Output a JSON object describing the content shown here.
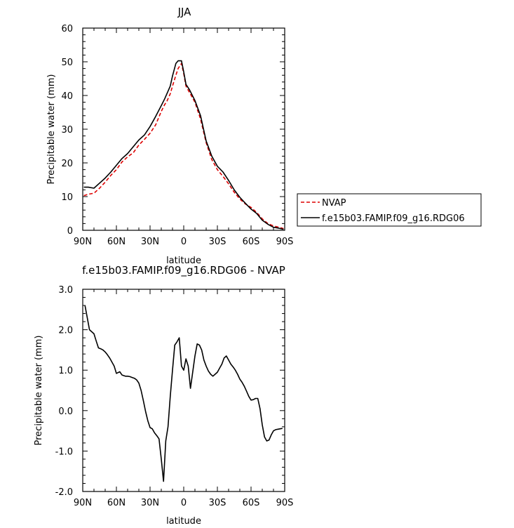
{
  "chart_data": [
    {
      "type": "line",
      "title": "JJA",
      "xlabel": "latitude",
      "ylabel": "Precipitable water (mm)",
      "xlim": [
        90,
        -90
      ],
      "ylim": [
        0,
        60
      ],
      "xticks": [
        90,
        60,
        30,
        0,
        -30,
        -60,
        -90
      ],
      "xtick_labels": [
        "90N",
        "60N",
        "30N",
        "0",
        "30S",
        "60S",
        "90S"
      ],
      "yticks": [
        0,
        10,
        20,
        30,
        40,
        50,
        60
      ],
      "ytick_labels": [
        "0",
        "10",
        "20",
        "30",
        "40",
        "50",
        "60"
      ],
      "legend_position": "right",
      "series": [
        {
          "name": "NVAP",
          "color": "#dd0000",
          "dash": "dashed",
          "x": [
            89,
            85,
            80,
            75,
            70,
            65,
            60,
            55,
            50,
            45,
            40,
            35,
            30,
            25,
            20,
            17,
            15,
            12,
            10,
            7,
            5,
            2,
            0,
            -2,
            -5,
            -10,
            -15,
            -20,
            -25,
            -30,
            -35,
            -40,
            -45,
            -50,
            -55,
            -60,
            -65,
            -70,
            -75,
            -80,
            -85,
            -89
          ],
          "y": [
            10.3,
            10.7,
            11.0,
            12.5,
            14.3,
            16.3,
            18.0,
            20.3,
            21.8,
            23.0,
            25.3,
            27.0,
            28.8,
            31.3,
            35.3,
            37.3,
            38.3,
            40.5,
            42.8,
            46.0,
            48.0,
            49.5,
            46.5,
            42.8,
            41.0,
            38.0,
            33.0,
            26.0,
            21.0,
            18.0,
            16.0,
            13.8,
            11.3,
            9.3,
            7.8,
            6.8,
            5.3,
            3.4,
            2.0,
            1.3,
            0.9,
            0.5
          ]
        },
        {
          "name": "f.e15b03.FAMIP.f09_g16.RDG06",
          "color": "#000000",
          "dash": "solid",
          "x": [
            89,
            85,
            80,
            75,
            70,
            65,
            60,
            55,
            50,
            45,
            40,
            35,
            30,
            25,
            20,
            17,
            15,
            12,
            10,
            7,
            5,
            2,
            0,
            -2,
            -5,
            -10,
            -15,
            -20,
            -25,
            -30,
            -35,
            -40,
            -45,
            -50,
            -55,
            -60,
            -65,
            -70,
            -75,
            -80,
            -85,
            -89
          ],
          "y": [
            12.8,
            12.8,
            12.5,
            14.0,
            15.5,
            17.3,
            19.3,
            21.3,
            22.8,
            24.8,
            26.8,
            28.3,
            30.8,
            33.8,
            37.0,
            39.0,
            40.5,
            42.8,
            45.8,
            49.5,
            50.3,
            50.3,
            47.0,
            43.3,
            41.8,
            38.5,
            34.0,
            26.5,
            22.0,
            19.0,
            17.3,
            14.8,
            12.0,
            9.8,
            8.0,
            6.3,
            5.0,
            3.0,
            1.8,
            0.9,
            0.6,
            0.3
          ]
        }
      ]
    },
    {
      "type": "line",
      "title": "f.e15b03.FAMIP.f09_g16.RDG06 - NVAP",
      "xlabel": "latitude",
      "ylabel": "Precipitable water (mm)",
      "xlim": [
        90,
        -90
      ],
      "ylim": [
        -2.0,
        3.0
      ],
      "xticks": [
        90,
        60,
        30,
        0,
        -30,
        -60,
        -90
      ],
      "xtick_labels": [
        "90N",
        "60N",
        "30N",
        "0",
        "30S",
        "60S",
        "90S"
      ],
      "yticks": [
        -2.0,
        -1.0,
        0.0,
        1.0,
        2.0,
        3.0
      ],
      "ytick_labels": [
        "-2.0",
        "-1.0",
        "0.0",
        "1.0",
        "2.0",
        "3.0"
      ],
      "series": [
        {
          "color": "#000000",
          "dash": "solid",
          "x": [
            88,
            86,
            84,
            82,
            80,
            78,
            76,
            74,
            72,
            70,
            68,
            66,
            62,
            60,
            57,
            55,
            52,
            50,
            48,
            46,
            44,
            42,
            40,
            38,
            36,
            34,
            32,
            30,
            28,
            26,
            24,
            22,
            20,
            18,
            16,
            14,
            12,
            10,
            8,
            6,
            4,
            2,
            0,
            -2,
            -4,
            -6,
            -8,
            -10,
            -12,
            -14,
            -16,
            -18,
            -20,
            -22,
            -24,
            -26,
            -28,
            -30,
            -32,
            -34,
            -36,
            -38,
            -40,
            -42,
            -44,
            -46,
            -48,
            -50,
            -52,
            -54,
            -56,
            -58,
            -60,
            -62,
            -64,
            -66,
            -68,
            -70,
            -72,
            -74,
            -76,
            -78,
            -80,
            -82,
            -84,
            -86,
            -88
          ],
          "y": [
            2.6,
            2.3,
            2.0,
            1.95,
            1.9,
            1.72,
            1.55,
            1.53,
            1.5,
            1.45,
            1.38,
            1.3,
            1.1,
            0.92,
            0.96,
            0.88,
            0.85,
            0.85,
            0.84,
            0.82,
            0.8,
            0.76,
            0.68,
            0.5,
            0.25,
            -0.02,
            -0.25,
            -0.42,
            -0.45,
            -0.55,
            -0.62,
            -0.7,
            -1.2,
            -1.75,
            -0.75,
            -0.4,
            0.35,
            1.0,
            1.62,
            1.7,
            1.8,
            1.1,
            1.0,
            1.28,
            1.1,
            0.55,
            0.95,
            1.35,
            1.65,
            1.62,
            1.5,
            1.25,
            1.1,
            0.98,
            0.9,
            0.85,
            0.9,
            0.95,
            1.05,
            1.15,
            1.3,
            1.35,
            1.25,
            1.15,
            1.08,
            1.0,
            0.9,
            0.78,
            0.7,
            0.6,
            0.48,
            0.35,
            0.26,
            0.27,
            0.3,
            0.3,
            0.05,
            -0.35,
            -0.65,
            -0.75,
            -0.73,
            -0.6,
            -0.5,
            -0.47,
            -0.46,
            -0.45,
            -0.44
          ]
        }
      ]
    }
  ]
}
